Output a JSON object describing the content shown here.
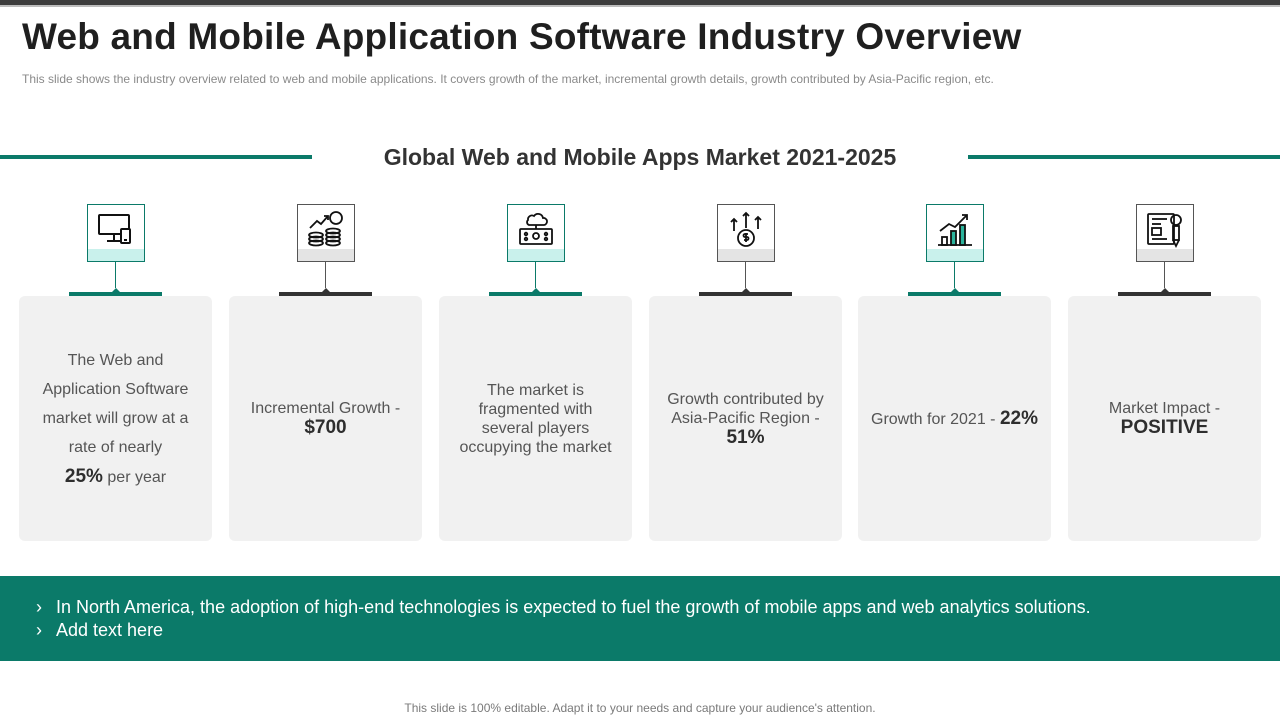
{
  "header": {
    "title": "Web and Mobile Application Software Industry Overview",
    "subtitle": "This slide shows the industry overview  related to web and mobile applications. It covers growth of the market, incremental growth details, growth contributed by Asia-Pacific region, etc."
  },
  "section": {
    "title": "Global Web and Mobile Apps Market 2021-2025"
  },
  "colors": {
    "accent": "#0b7a69",
    "dark": "#333333",
    "card": "#f1f1f1"
  },
  "cards": [
    {
      "icon": "desktop-mobile-icon",
      "text_a": "The Web and Application Software market will grow at a rate of nearly",
      "value": "25%",
      "text_b": "per year"
    },
    {
      "icon": "money-growth-icon",
      "text_a": "Incremental Growth -",
      "value": "$700"
    },
    {
      "icon": "cloud-monitor-icon",
      "text_a": "The market is fragmented with several players occupying the market"
    },
    {
      "icon": "dollar-arrows-icon",
      "text_a": "Growth contributed by Asia-Pacific Region -",
      "value": "51%"
    },
    {
      "icon": "bar-chart-growth-icon",
      "text_a": "Growth for 2021 -",
      "value": "22%"
    },
    {
      "icon": "report-document-icon",
      "text_a": "Market Impact -",
      "value": "POSITIVE"
    }
  ],
  "banner": {
    "bullets": [
      "In North America, the adoption of high-end technologies is expected to fuel the growth of mobile apps and web analytics solutions.",
      "Add text here"
    ],
    "bullet_glyph": "›"
  },
  "footer": {
    "note": "This slide is 100% editable. Adapt it to your needs and capture your audience's attention."
  }
}
